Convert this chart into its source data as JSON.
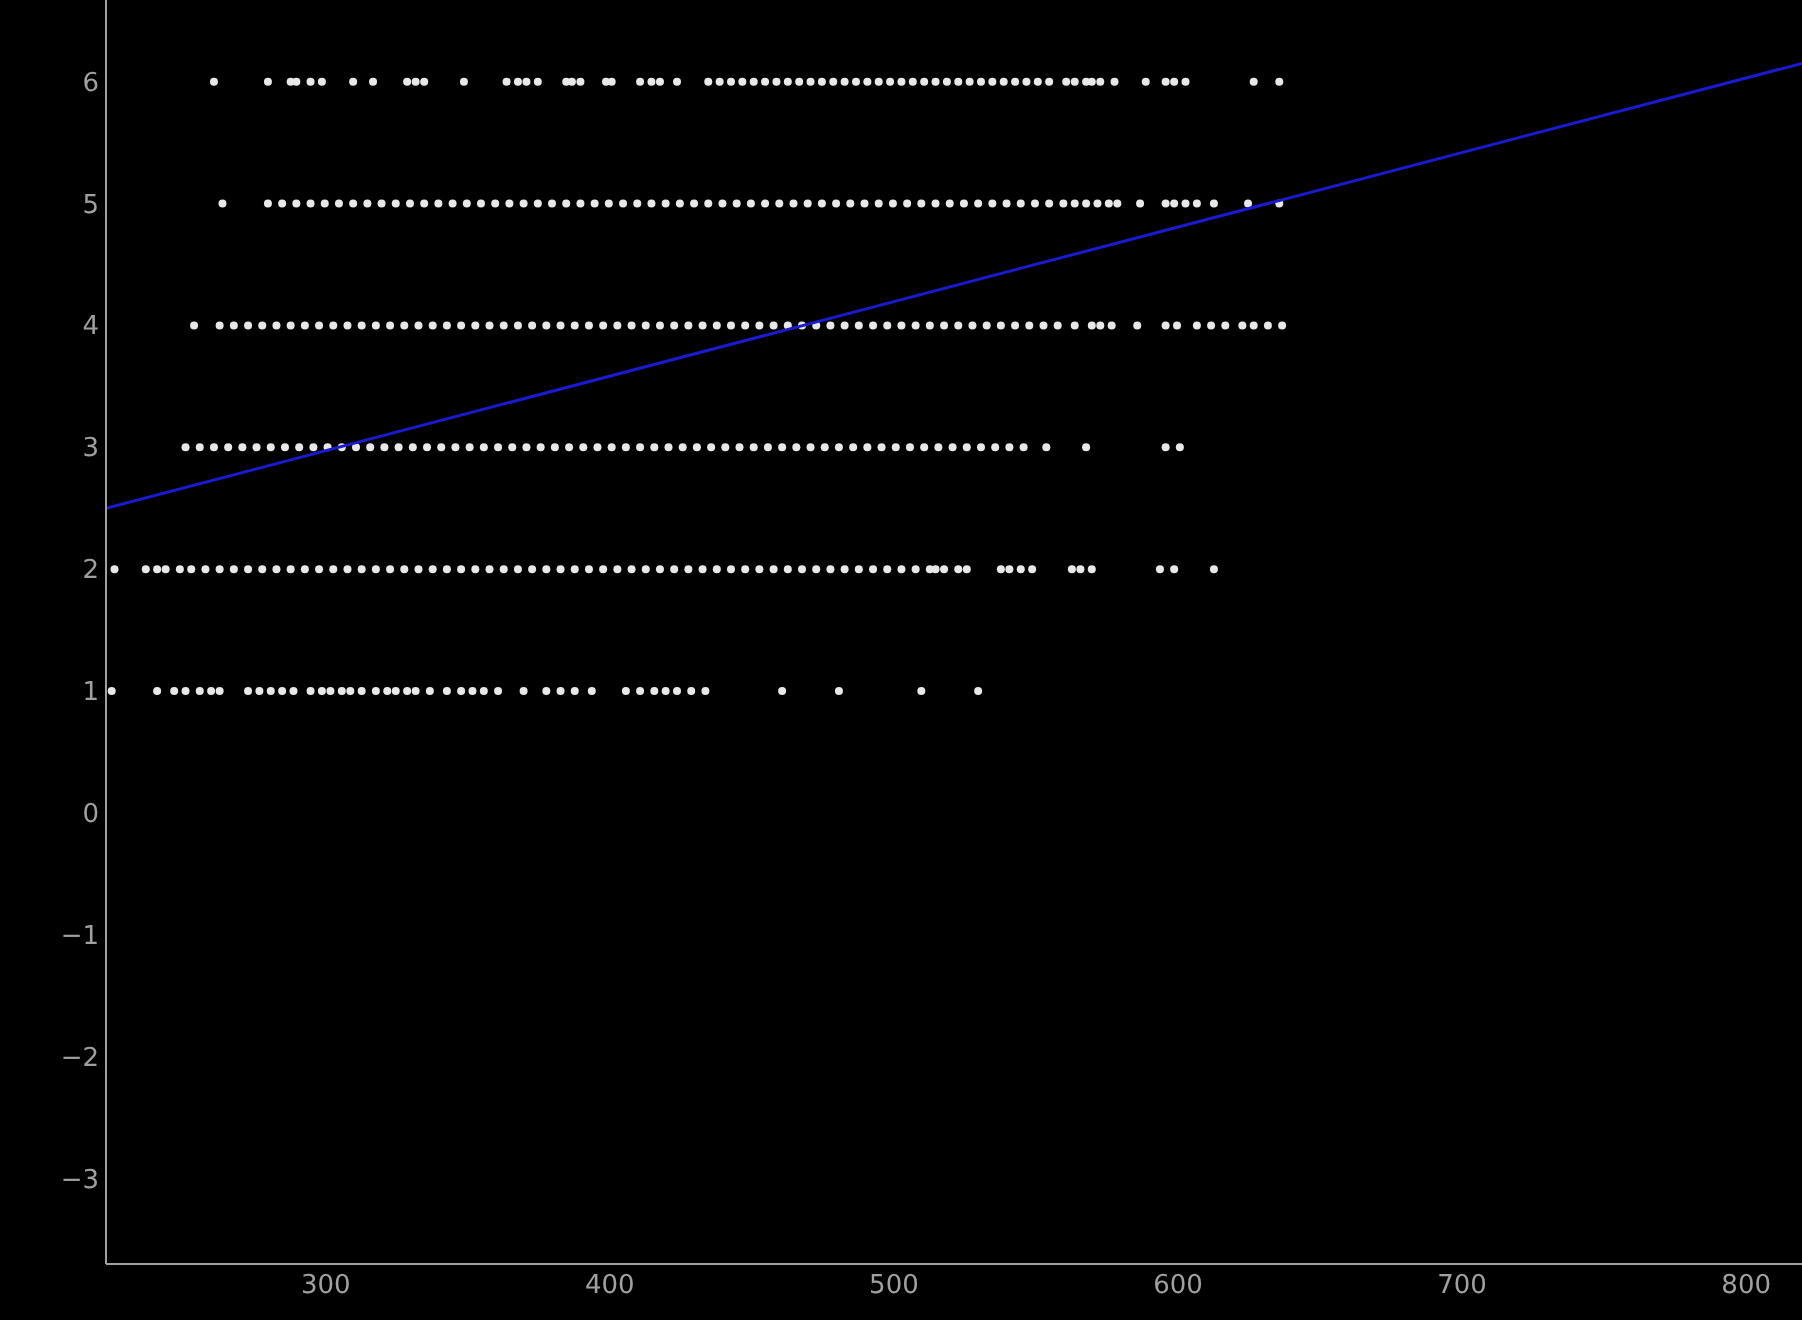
{
  "chart_data": {
    "type": "scatter",
    "xlim": [
      223,
      820
    ],
    "xticks": [
      300,
      400,
      500,
      600,
      700,
      800
    ],
    "ylim": [
      -3.7,
      6.67
    ],
    "yticks": [
      -3,
      -2,
      -1,
      0,
      1,
      2,
      3,
      4,
      5,
      6
    ],
    "grid": false,
    "marker": "circle",
    "series": [
      {
        "color": "#e8e8e8",
        "x": [
          261,
          280,
          288,
          290,
          295,
          299,
          310,
          317,
          329,
          332,
          335,
          349,
          364,
          368,
          371,
          375,
          385,
          387,
          390,
          399,
          401,
          411,
          415,
          418,
          424,
          435,
          439,
          443,
          447,
          451,
          455,
          459,
          463,
          467,
          471,
          475,
          479,
          483,
          487,
          491,
          495,
          499,
          503,
          507,
          511,
          515,
          519,
          523,
          527,
          531,
          535,
          539,
          543,
          547,
          551,
          555,
          561,
          564,
          568,
          570,
          573,
          578,
          589,
          596,
          599,
          603,
          627,
          636
        ],
        "values": [
          6,
          6,
          6,
          6,
          6,
          6,
          6,
          6,
          6,
          6,
          6,
          6,
          6,
          6,
          6,
          6,
          6,
          6,
          6,
          6,
          6,
          6,
          6,
          6,
          6,
          6,
          6,
          6,
          6,
          6,
          6,
          6,
          6,
          6,
          6,
          6,
          6,
          6,
          6,
          6,
          6,
          6,
          6,
          6,
          6,
          6,
          6,
          6,
          6,
          6,
          6,
          6,
          6,
          6,
          6,
          6,
          6,
          6,
          6,
          6,
          6,
          6,
          6,
          6,
          6,
          6,
          6,
          6
        ]
      },
      {
        "color": "#e8e8e8",
        "x": [
          264,
          280,
          285,
          290,
          295,
          300,
          305,
          310,
          315,
          320,
          325,
          330,
          335,
          340,
          345,
          350,
          355,
          360,
          365,
          370,
          375,
          380,
          385,
          390,
          395,
          400,
          405,
          410,
          415,
          420,
          425,
          430,
          435,
          440,
          445,
          450,
          455,
          460,
          465,
          470,
          475,
          480,
          485,
          490,
          495,
          500,
          505,
          510,
          515,
          520,
          525,
          530,
          535,
          540,
          545,
          550,
          555,
          560,
          564,
          568,
          572,
          576,
          579,
          587,
          596,
          599,
          603,
          607,
          613,
          625,
          636
        ],
        "values": [
          5,
          5,
          5,
          5,
          5,
          5,
          5,
          5,
          5,
          5,
          5,
          5,
          5,
          5,
          5,
          5,
          5,
          5,
          5,
          5,
          5,
          5,
          5,
          5,
          5,
          5,
          5,
          5,
          5,
          5,
          5,
          5,
          5,
          5,
          5,
          5,
          5,
          5,
          5,
          5,
          5,
          5,
          5,
          5,
          5,
          5,
          5,
          5,
          5,
          5,
          5,
          5,
          5,
          5,
          5,
          5,
          5,
          5,
          5,
          5,
          5,
          5,
          5,
          5,
          5,
          5,
          5,
          5,
          5,
          5,
          5
        ]
      },
      {
        "color": "#e8e8e8",
        "x": [
          254,
          263,
          268,
          273,
          278,
          283,
          288,
          293,
          298,
          303,
          308,
          313,
          318,
          323,
          328,
          333,
          338,
          343,
          348,
          353,
          358,
          363,
          368,
          373,
          378,
          383,
          388,
          393,
          398,
          403,
          408,
          413,
          418,
          423,
          428,
          433,
          438,
          443,
          448,
          453,
          458,
          463,
          468,
          473,
          478,
          483,
          488,
          493,
          498,
          503,
          508,
          513,
          518,
          523,
          528,
          533,
          538,
          543,
          548,
          553,
          558,
          564,
          570,
          573,
          577,
          586,
          596,
          600,
          607,
          612,
          617,
          623,
          627,
          632,
          637
        ],
        "values": [
          4,
          4,
          4,
          4,
          4,
          4,
          4,
          4,
          4,
          4,
          4,
          4,
          4,
          4,
          4,
          4,
          4,
          4,
          4,
          4,
          4,
          4,
          4,
          4,
          4,
          4,
          4,
          4,
          4,
          4,
          4,
          4,
          4,
          4,
          4,
          4,
          4,
          4,
          4,
          4,
          4,
          4,
          4,
          4,
          4,
          4,
          4,
          4,
          4,
          4,
          4,
          4,
          4,
          4,
          4,
          4,
          4,
          4,
          4,
          4,
          4,
          4,
          4,
          4,
          4,
          4,
          4,
          4,
          4,
          4,
          4,
          4,
          4,
          4,
          4
        ]
      },
      {
        "color": "#e8e8e8",
        "x": [
          251,
          256,
          261,
          266,
          271,
          276,
          281,
          286,
          291,
          296,
          301,
          306,
          311,
          316,
          321,
          326,
          331,
          336,
          341,
          346,
          351,
          356,
          361,
          366,
          371,
          376,
          381,
          386,
          391,
          396,
          401,
          406,
          411,
          416,
          421,
          426,
          431,
          436,
          441,
          446,
          451,
          456,
          461,
          466,
          471,
          476,
          481,
          486,
          491,
          496,
          501,
          506,
          511,
          516,
          521,
          526,
          531,
          536,
          541,
          546,
          554,
          568,
          596,
          601
        ],
        "values": [
          3,
          3,
          3,
          3,
          3,
          3,
          3,
          3,
          3,
          3,
          3,
          3,
          3,
          3,
          3,
          3,
          3,
          3,
          3,
          3,
          3,
          3,
          3,
          3,
          3,
          3,
          3,
          3,
          3,
          3,
          3,
          3,
          3,
          3,
          3,
          3,
          3,
          3,
          3,
          3,
          3,
          3,
          3,
          3,
          3,
          3,
          3,
          3,
          3,
          3,
          3,
          3,
          3,
          3,
          3,
          3,
          3,
          3,
          3,
          3,
          3,
          3,
          3,
          3
        ]
      },
      {
        "color": "#e8e8e8",
        "x": [
          226,
          237,
          241,
          244,
          249,
          253,
          258,
          263,
          268,
          273,
          278,
          283,
          288,
          293,
          298,
          303,
          308,
          313,
          318,
          323,
          328,
          333,
          338,
          343,
          348,
          353,
          358,
          363,
          368,
          373,
          378,
          383,
          388,
          393,
          398,
          403,
          408,
          413,
          418,
          423,
          428,
          433,
          438,
          443,
          448,
          453,
          458,
          463,
          468,
          473,
          478,
          483,
          488,
          493,
          498,
          503,
          508,
          513,
          515,
          518,
          523,
          526,
          538,
          541,
          545,
          549,
          563,
          566,
          570,
          594,
          599,
          613
        ],
        "values": [
          2,
          2,
          2,
          2,
          2,
          2,
          2,
          2,
          2,
          2,
          2,
          2,
          2,
          2,
          2,
          2,
          2,
          2,
          2,
          2,
          2,
          2,
          2,
          2,
          2,
          2,
          2,
          2,
          2,
          2,
          2,
          2,
          2,
          2,
          2,
          2,
          2,
          2,
          2,
          2,
          2,
          2,
          2,
          2,
          2,
          2,
          2,
          2,
          2,
          2,
          2,
          2,
          2,
          2,
          2,
          2,
          2,
          2,
          2,
          2,
          2,
          2,
          2,
          2,
          2,
          2,
          2,
          2,
          2,
          2,
          2,
          2
        ]
      },
      {
        "color": "#e8e8e8",
        "x": [
          225,
          241,
          247,
          251,
          256,
          260,
          263,
          273,
          277,
          281,
          285,
          289,
          295,
          299,
          302,
          306,
          309,
          313,
          318,
          322,
          325,
          329,
          332,
          337,
          343,
          348,
          352,
          356,
          361,
          370,
          378,
          383,
          388,
          394,
          406,
          411,
          416,
          420,
          424,
          429,
          434,
          461,
          481,
          510,
          530
        ],
        "values": [
          1,
          1,
          1,
          1,
          1,
          1,
          1,
          1,
          1,
          1,
          1,
          1,
          1,
          1,
          1,
          1,
          1,
          1,
          1,
          1,
          1,
          1,
          1,
          1,
          1,
          1,
          1,
          1,
          1,
          1,
          1,
          1,
          1,
          1,
          1,
          1,
          1,
          1,
          1,
          1,
          1,
          1,
          1,
          1,
          1
        ]
      },
      {
        "type": "line",
        "color": "#1a1ad0",
        "line_style": "solid",
        "marker": "none",
        "x": [
          223,
          820
        ],
        "values": [
          2.5,
          6.15
        ]
      }
    ]
  }
}
